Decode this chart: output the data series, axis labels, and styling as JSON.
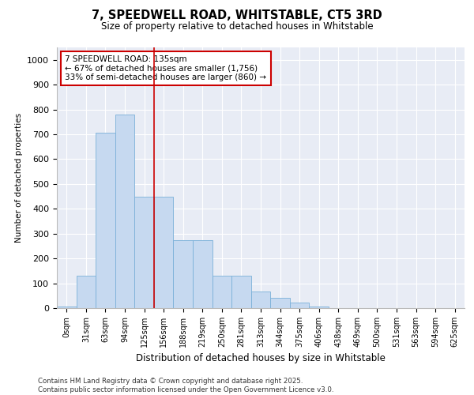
{
  "title_line1": "7, SPEEDWELL ROAD, WHITSTABLE, CT5 3RD",
  "title_line2": "Size of property relative to detached houses in Whitstable",
  "xlabel": "Distribution of detached houses by size in Whitstable",
  "ylabel": "Number of detached properties",
  "categories": [
    "0sqm",
    "31sqm",
    "63sqm",
    "94sqm",
    "125sqm",
    "156sqm",
    "188sqm",
    "219sqm",
    "250sqm",
    "281sqm",
    "313sqm",
    "344sqm",
    "375sqm",
    "406sqm",
    "438sqm",
    "469sqm",
    "500sqm",
    "531sqm",
    "563sqm",
    "594sqm",
    "625sqm"
  ],
  "values": [
    5,
    130,
    705,
    780,
    450,
    450,
    275,
    275,
    130,
    130,
    68,
    40,
    22,
    5,
    0,
    0,
    0,
    0,
    0,
    0,
    0
  ],
  "bar_color": "#c6d9f0",
  "bar_edge_color": "#7ab0d8",
  "vline_x": 4.5,
  "vline_color": "#cc0000",
  "annotation_text": "7 SPEEDWELL ROAD: 135sqm\n← 67% of detached houses are smaller (1,756)\n33% of semi-detached houses are larger (860) →",
  "annotation_box_facecolor": "white",
  "annotation_box_edgecolor": "#cc0000",
  "ylim": [
    0,
    1050
  ],
  "yticks": [
    0,
    100,
    200,
    300,
    400,
    500,
    600,
    700,
    800,
    900,
    1000
  ],
  "plot_bg_color": "#e8ecf5",
  "grid_color": "white",
  "footer_line1": "Contains HM Land Registry data © Crown copyright and database right 2025.",
  "footer_line2": "Contains public sector information licensed under the Open Government Licence v3.0."
}
